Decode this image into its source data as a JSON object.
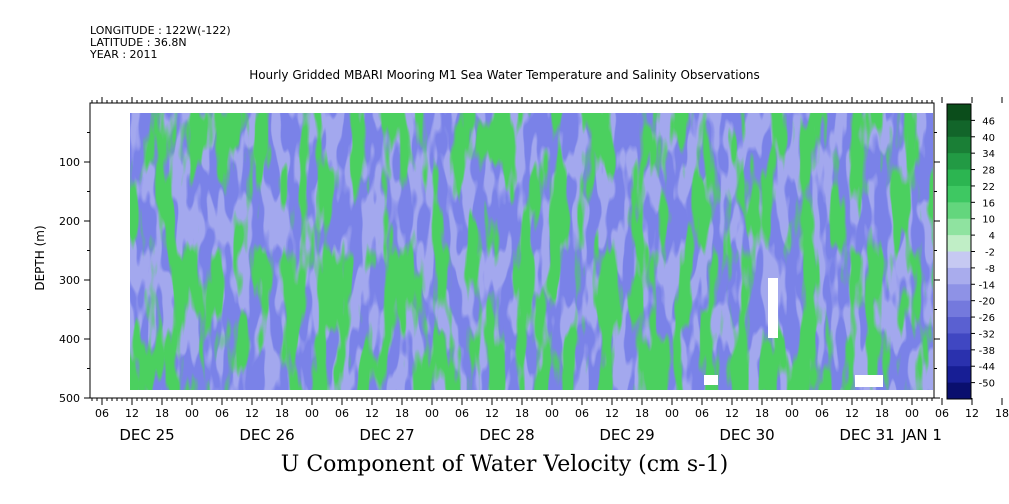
{
  "header": {
    "longitude": "LONGITUDE : 122W(-122)",
    "latitude": "LATITUDE : 36.8N",
    "year": "YEAR : 2011"
  },
  "chart_data": {
    "type": "heatmap",
    "title": "Hourly Gridded MBARI Mooring M1 Sea Water Temperature and Salinity Observations",
    "xlabel": "U Component of Water Velocity (cm s-1)",
    "ylabel": "DEPTH (m)",
    "ylim": [
      500,
      0
    ],
    "y_ticks": [
      100,
      200,
      300,
      400,
      500
    ],
    "x_hour_ticks": [
      "06",
      "12",
      "18",
      "00",
      "06",
      "12",
      "18",
      "00",
      "06",
      "12",
      "18",
      "00",
      "06",
      "12",
      "18",
      "00",
      "06",
      "12",
      "18",
      "00",
      "06",
      "12",
      "18",
      "00",
      "06",
      "12",
      "18",
      "00",
      "06",
      "12",
      "18",
      "00"
    ],
    "x_day_labels": [
      "DEC 25",
      "DEC 26",
      "DEC 27",
      "DEC 28",
      "DEC 29",
      "DEC 30",
      "DEC 31",
      "JAN  1"
    ],
    "colorbar": {
      "labels": [
        "46",
        "40",
        "34",
        "28",
        "22",
        "16",
        "10",
        "4",
        "-2",
        "-8",
        "-14",
        "-20",
        "-26",
        "-32",
        "-38",
        "-44",
        "-50"
      ],
      "colors": [
        "#0b4d1b",
        "#12652a",
        "#1a7f36",
        "#229a44",
        "#2cb551",
        "#3ec862",
        "#63d67d",
        "#8fe3a0",
        "#c0eec6",
        "#c6c9f2",
        "#a9aced",
        "#8e92e6",
        "#7479dd",
        "#5a60d1",
        "#4047c2",
        "#2a31ae",
        "#171e95",
        "#0a0f6e"
      ]
    },
    "x_range": [
      "DEC 25 12:00",
      "DEC 31 23:00"
    ],
    "depth_range": [
      10,
      490
    ],
    "field_description_colors": {
      "positive": "#4cd05f",
      "negative": "#7a82e8"
    }
  }
}
